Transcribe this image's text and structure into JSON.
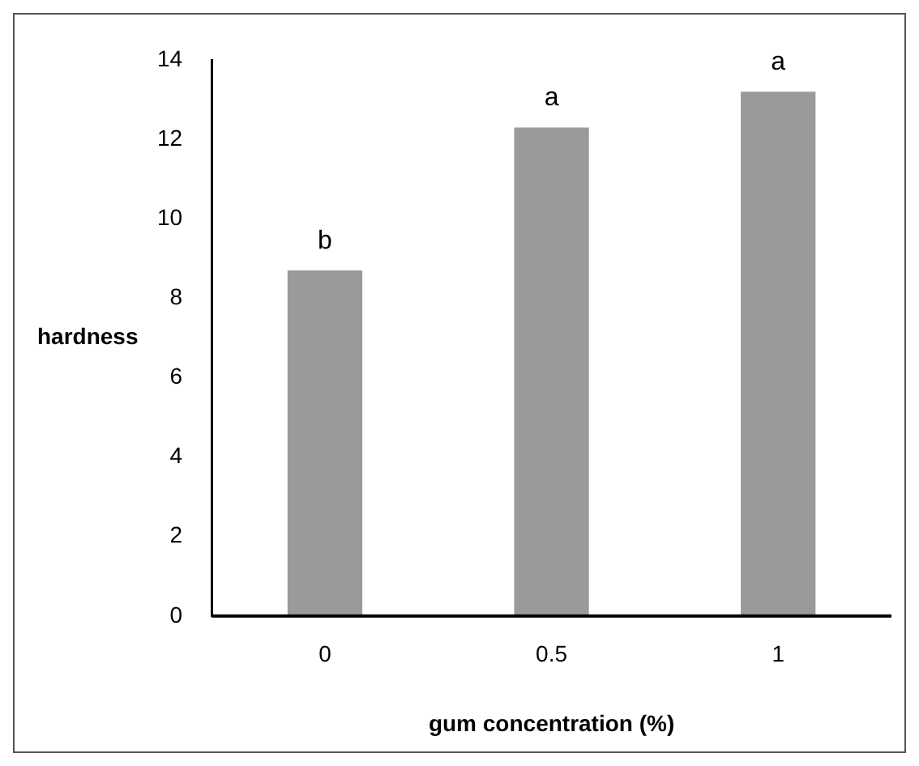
{
  "chart_data": {
    "type": "bar",
    "xlabel": "gum concentration (%)",
    "ylabel": "hardness",
    "categories": [
      "0",
      "0.5",
      "1"
    ],
    "values": [
      8.7,
      12.3,
      13.2
    ],
    "color": "#9a9a9a",
    "ylim": [
      0,
      14
    ],
    "yticks": [
      0,
      2,
      4,
      6,
      8,
      10,
      12,
      14
    ],
    "grid": false,
    "annotations": [
      {
        "text": "b",
        "x": "0",
        "y": 8.7
      },
      {
        "text": "a",
        "x": "0.5",
        "y": 12.3
      },
      {
        "text": "a",
        "x": "1",
        "y": 13.2
      }
    ]
  }
}
